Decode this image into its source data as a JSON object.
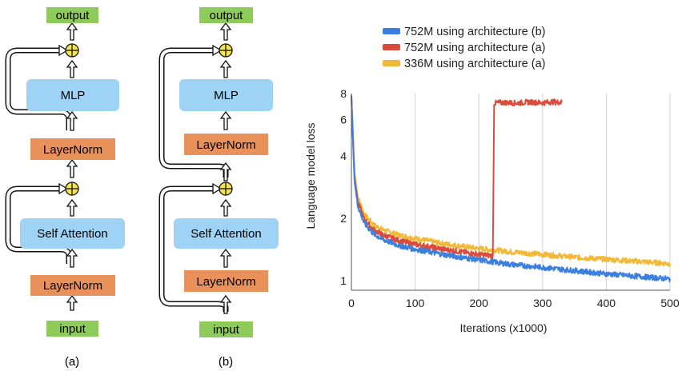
{
  "diagram_a": {
    "output": "output",
    "mlp": "MLP",
    "layernorm_top": "LayerNorm",
    "self_attention": "Self Attention",
    "layernorm_bottom": "LayerNorm",
    "input": "input",
    "caption": "(a)"
  },
  "diagram_b": {
    "output": "output",
    "mlp": "MLP",
    "layernorm_top": "LayerNorm",
    "self_attention": "Self Attention",
    "layernorm_bottom": "LayerNorm",
    "input": "input",
    "caption": "(b)"
  },
  "colors": {
    "green": "#8FCB5A",
    "blue": "#9FD3F5",
    "orange": "#E8915A",
    "plus": "#F2E64C",
    "blue_series": "#3B7FE0",
    "red_series": "#D94B3A",
    "yellow_series": "#F2B838"
  },
  "chart_data": {
    "type": "line",
    "title": "",
    "xlabel": "Iterations (x1000)",
    "ylabel": "Language model loss",
    "xlim": [
      0,
      500
    ],
    "ylim": [
      0.9,
      8
    ],
    "yscale": "log",
    "x_ticks": [
      "0",
      "100",
      "200",
      "300",
      "400",
      "500"
    ],
    "y_ticks": [
      "1",
      "2",
      "4",
      "6",
      "8"
    ],
    "grid": "vertical",
    "legend_position": "top",
    "series": [
      {
        "name": "752M using architecture (b)",
        "color": "#3B7FE0",
        "x": [
          0,
          2,
          5,
          10,
          20,
          35,
          50,
          75,
          100,
          150,
          200,
          250,
          300,
          350,
          400,
          450,
          500
        ],
        "y": [
          7.8,
          5.2,
          3.0,
          2.3,
          1.9,
          1.68,
          1.58,
          1.48,
          1.42,
          1.33,
          1.26,
          1.2,
          1.16,
          1.12,
          1.08,
          1.05,
          1.02
        ]
      },
      {
        "name": "752M using architecture (a)",
        "color": "#D94B3A",
        "x": [
          0,
          2,
          5,
          10,
          20,
          35,
          50,
          75,
          100,
          150,
          200,
          222,
          224,
          240,
          260,
          280,
          300,
          315,
          330
        ],
        "y": [
          7.8,
          5.3,
          3.1,
          2.4,
          1.98,
          1.76,
          1.66,
          1.56,
          1.5,
          1.41,
          1.34,
          1.32,
          7.2,
          7.25,
          7.2,
          7.28,
          7.22,
          7.3,
          7.25
        ]
      },
      {
        "name": "336M using architecture (a)",
        "color": "#F2B838",
        "x": [
          0,
          2,
          5,
          10,
          20,
          35,
          50,
          75,
          100,
          150,
          200,
          250,
          300,
          350,
          400,
          450,
          500
        ],
        "y": [
          7.9,
          5.5,
          3.3,
          2.55,
          2.1,
          1.86,
          1.76,
          1.66,
          1.6,
          1.5,
          1.43,
          1.38,
          1.34,
          1.3,
          1.27,
          1.24,
          1.21
        ]
      }
    ]
  }
}
